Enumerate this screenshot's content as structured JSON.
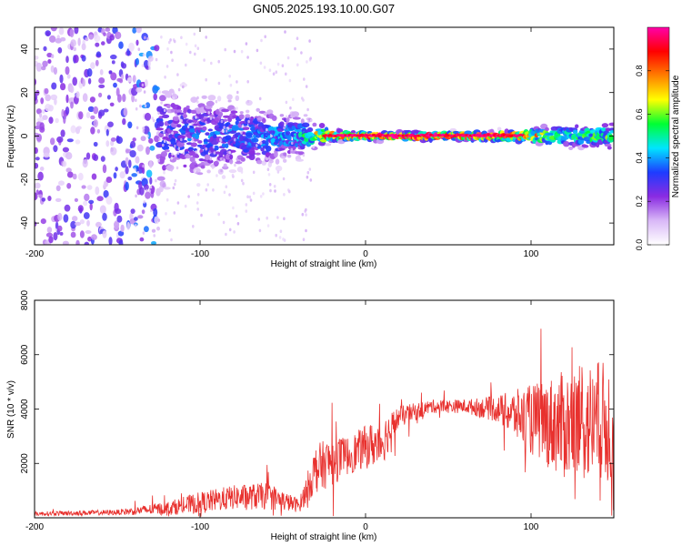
{
  "title": "GN05.2025.193.10.00.G07",
  "chart_data": [
    {
      "type": "heatmap",
      "xlabel": "Height of straight line (km)",
      "ylabel": "Frequency (Hz)",
      "xlim": [
        -200,
        150
      ],
      "ylim": [
        -50,
        50
      ],
      "xticks": [
        -200,
        -100,
        0,
        100
      ],
      "yticks": [
        -40,
        -20,
        0,
        20,
        40
      ],
      "colorbar": {
        "label": "Normalized spectral amplitude",
        "range": [
          0,
          1
        ],
        "ticks": [
          0.0,
          0.2,
          0.4,
          0.6,
          0.8
        ],
        "colormap": [
          "#ffffff",
          "#d9b8f7",
          "#8a2be2",
          "#1e3cff",
          "#00e5ff",
          "#00ff33",
          "#ffff00",
          "#ff7f00",
          "#ff0000",
          "#ff00aa"
        ]
      },
      "ridge": [
        {
          "x": -200,
          "spread": 60,
          "amplitude": 0.18
        },
        {
          "x": -150,
          "spread": 50,
          "amplitude": 0.22
        },
        {
          "x": -120,
          "spread": 14,
          "amplitude": 0.32
        },
        {
          "x": -80,
          "spread": 10,
          "amplitude": 0.38
        },
        {
          "x": -40,
          "spread": 6,
          "amplitude": 0.42
        },
        {
          "x": -20,
          "spread": 1.5,
          "amplitude": 0.95
        },
        {
          "x": 0,
          "spread": 1.2,
          "amplitude": 0.97
        },
        {
          "x": 50,
          "spread": 1.2,
          "amplitude": 0.97
        },
        {
          "x": 90,
          "spread": 1.5,
          "amplitude": 0.9
        },
        {
          "x": 120,
          "spread": 3,
          "amplitude": 0.6
        },
        {
          "x": 150,
          "spread": 4,
          "amplitude": 0.55
        }
      ]
    },
    {
      "type": "line",
      "xlabel": "Height of straight line (km)",
      "ylabel": "SNR (10 * v/v)",
      "xlim": [
        -200,
        150
      ],
      "ylim": [
        0,
        8000
      ],
      "xticks": [
        -200,
        -100,
        0,
        100
      ],
      "yticks": [
        2000,
        4000,
        6000,
        8000
      ],
      "color": "#e8312e",
      "envelope": [
        {
          "x": -200,
          "mean": 150,
          "noise": 80
        },
        {
          "x": -150,
          "mean": 200,
          "noise": 100
        },
        {
          "x": -120,
          "mean": 350,
          "noise": 250
        },
        {
          "x": -100,
          "mean": 550,
          "noise": 400
        },
        {
          "x": -80,
          "mean": 750,
          "noise": 450
        },
        {
          "x": -60,
          "mean": 800,
          "noise": 500
        },
        {
          "x": -40,
          "mean": 450,
          "noise": 250
        },
        {
          "x": -30,
          "mean": 1800,
          "noise": 900
        },
        {
          "x": -20,
          "mean": 2100,
          "noise": 900
        },
        {
          "x": -10,
          "mean": 2300,
          "noise": 700
        },
        {
          "x": 0,
          "mean": 2600,
          "noise": 800
        },
        {
          "x": 10,
          "mean": 2800,
          "noise": 900
        },
        {
          "x": 20,
          "mean": 3700,
          "noise": 400
        },
        {
          "x": 40,
          "mean": 4100,
          "noise": 250
        },
        {
          "x": 60,
          "mean": 4100,
          "noise": 250
        },
        {
          "x": 80,
          "mean": 4000,
          "noise": 500
        },
        {
          "x": 100,
          "mean": 3600,
          "noise": 1300
        },
        {
          "x": 120,
          "mean": 3400,
          "noise": 2000
        },
        {
          "x": 140,
          "mean": 3500,
          "noise": 2300
        },
        {
          "x": 150,
          "mean": 3400,
          "noise": 2300
        }
      ]
    }
  ]
}
